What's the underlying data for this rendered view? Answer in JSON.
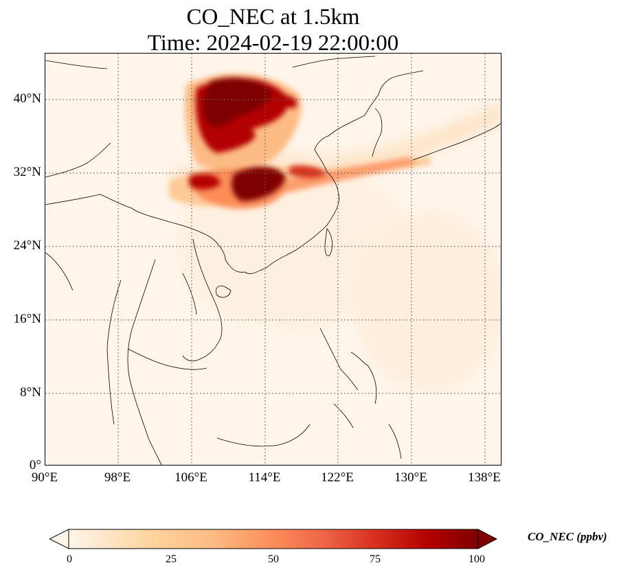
{
  "title": {
    "line1": "CO_NEC at 1.5km",
    "line2": "Time: 2024-02-19 22:00:00"
  },
  "map": {
    "region": "East and Southeast Asia",
    "lon_range": [
      90,
      139
    ],
    "lat_range": [
      0,
      45
    ],
    "colormap": "OrRd",
    "background_color": "#fff5eb",
    "high_color": "#7f0000",
    "gridlines": "dotted"
  },
  "y_ticks": [
    "40°N",
    "32°N",
    "24°N",
    "16°N",
    "8°N",
    "0°"
  ],
  "x_ticks": [
    "90°E",
    "98°E",
    "106°E",
    "114°E",
    "122°E",
    "130°E",
    "138°E"
  ],
  "colorbar": {
    "label": "CO_NEC (ppbv)",
    "ticks": [
      "0",
      "25",
      "50",
      "75",
      "100"
    ],
    "range": [
      0,
      100
    ],
    "extend": "both",
    "colors": [
      "#fff5eb",
      "#fdd49e",
      "#fdbb84",
      "#fc8d59",
      "#ef6548",
      "#d7301f",
      "#b30000",
      "#7f0000"
    ]
  }
}
